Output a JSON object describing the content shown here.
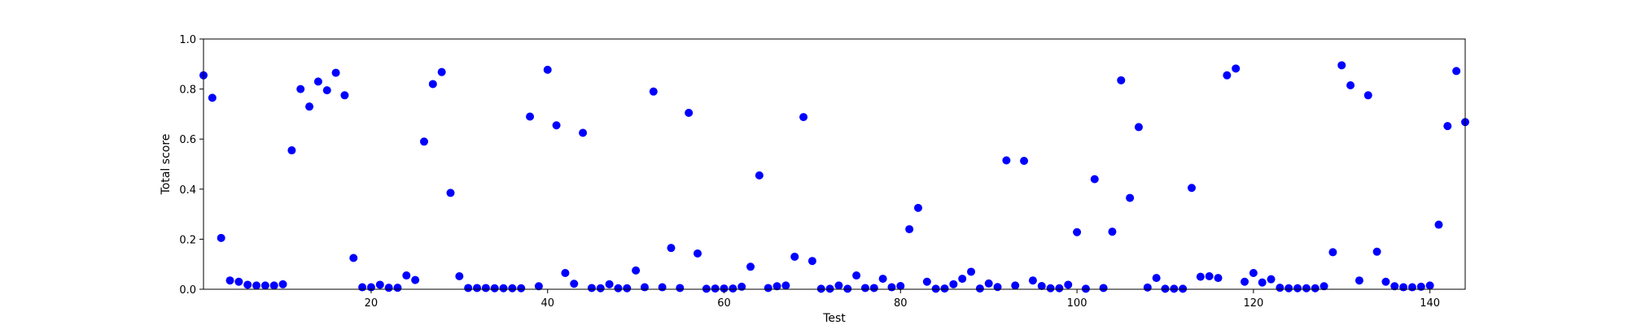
{
  "chart_data": {
    "type": "scatter",
    "title": "",
    "xlabel": "Test",
    "ylabel": "Total score",
    "xlim": [
      1,
      144
    ],
    "ylim": [
      0.0,
      1.0
    ],
    "xticks": [
      20,
      40,
      60,
      80,
      100,
      120,
      140
    ],
    "xtick_labels": [
      "20",
      "40",
      "60",
      "80",
      "100",
      "120",
      "140"
    ],
    "yticks": [
      0.0,
      0.2,
      0.4,
      0.6,
      0.8,
      1.0
    ],
    "ytick_labels": [
      "0.0",
      "0.2",
      "0.4",
      "0.6",
      "0.8",
      "1.0"
    ],
    "grid": false,
    "marker_color": "#0000ff",
    "series": [
      {
        "x": [
          1,
          2,
          3,
          4,
          5,
          6,
          7,
          8,
          9,
          10,
          11,
          12,
          13,
          14,
          15,
          16,
          17,
          18,
          19,
          20,
          21,
          22,
          23,
          24,
          25,
          26,
          27,
          28,
          29,
          30,
          31,
          32,
          33,
          34,
          35,
          36,
          37,
          38,
          39,
          40,
          41,
          42,
          43,
          44,
          45,
          46,
          47,
          48,
          49,
          50,
          51,
          52,
          53,
          54,
          55,
          56,
          57,
          58,
          59,
          60,
          61,
          62,
          63,
          64,
          65,
          66,
          67,
          68,
          69,
          70,
          71,
          72,
          73,
          74,
          75,
          76,
          77,
          78,
          79,
          80,
          81,
          82,
          83,
          84,
          85,
          86,
          87,
          88,
          89,
          90,
          91,
          92,
          93,
          94,
          95,
          96,
          97,
          98,
          99,
          100,
          101,
          102,
          103,
          104,
          105,
          106,
          107,
          108,
          109,
          110,
          111,
          112,
          113,
          114,
          115,
          116,
          117,
          118,
          119,
          120,
          121,
          122,
          123,
          124,
          125,
          126,
          127,
          128,
          129,
          130,
          131,
          132,
          133,
          134,
          135,
          136,
          137,
          138,
          139,
          140,
          141,
          142,
          143,
          144
        ],
        "y": [
          0.855,
          0.765,
          0.205,
          0.035,
          0.03,
          0.018,
          0.015,
          0.015,
          0.015,
          0.02,
          0.555,
          0.8,
          0.73,
          0.83,
          0.795,
          0.865,
          0.775,
          0.125,
          0.008,
          0.008,
          0.018,
          0.006,
          0.006,
          0.055,
          0.037,
          0.59,
          0.82,
          0.868,
          0.385,
          0.052,
          0.005,
          0.005,
          0.005,
          0.004,
          0.004,
          0.004,
          0.004,
          0.69,
          0.012,
          0.877,
          0.655,
          0.065,
          0.022,
          0.625,
          0.005,
          0.004,
          0.02,
          0.004,
          0.004,
          0.075,
          0.008,
          0.79,
          0.008,
          0.165,
          0.005,
          0.705,
          0.143,
          0.002,
          0.003,
          0.003,
          0.003,
          0.01,
          0.09,
          0.455,
          0.005,
          0.012,
          0.015,
          0.13,
          0.688,
          0.113,
          0.002,
          0.002,
          0.015,
          0.002,
          0.055,
          0.005,
          0.005,
          0.042,
          0.008,
          0.013,
          0.24,
          0.325,
          0.03,
          0.002,
          0.003,
          0.02,
          0.042,
          0.07,
          0.003,
          0.023,
          0.009,
          0.515,
          0.015,
          0.513,
          0.035,
          0.013,
          0.004,
          0.004,
          0.018,
          0.228,
          0.002,
          0.44,
          0.005,
          0.23,
          0.835,
          0.365,
          0.648,
          0.007,
          0.045,
          0.002,
          0.002,
          0.002,
          0.405,
          0.05,
          0.052,
          0.045,
          0.855,
          0.882,
          0.03,
          0.065,
          0.027,
          0.04,
          0.006,
          0.004,
          0.004,
          0.004,
          0.004,
          0.012,
          0.148,
          0.895,
          0.815,
          0.035,
          0.775,
          0.15,
          0.03,
          0.012,
          0.008,
          0.008,
          0.01,
          0.015,
          0.258,
          0.652,
          0.872,
          0.668
        ]
      }
    ]
  }
}
